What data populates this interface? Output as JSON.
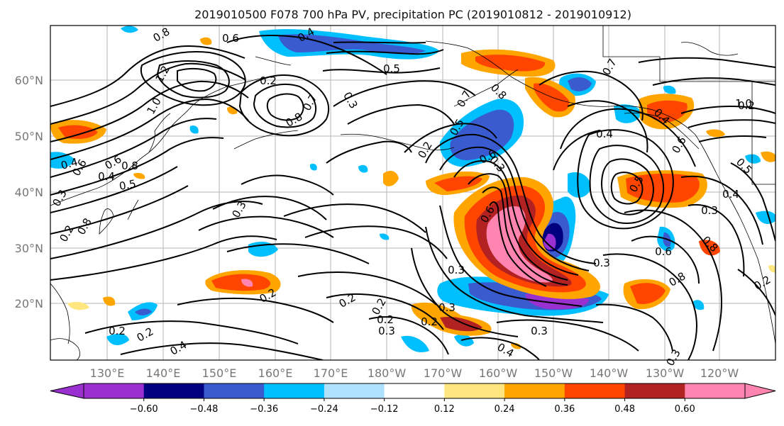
{
  "title": "2019010500 F078 700 hPa PV, precipitation PC (2019010812 - 2019010912)",
  "lat_ticks": [
    "60°N",
    "50°N",
    "40°N",
    "30°N",
    "20°N"
  ],
  "lon_ticks": [
    "130°E",
    "140°E",
    "150°E",
    "160°E",
    "170°E",
    "180°W",
    "170°W",
    "160°W",
    "150°W",
    "140°W",
    "130°W",
    "120°W"
  ],
  "colorbar": {
    "colors": [
      "#9b30d0",
      "#000080",
      "#3a5bd0",
      "#00bfff",
      "#b0e2ff",
      "#ffffff",
      "#ffe680",
      "#ffa500",
      "#ff4500",
      "#b22222",
      "#ff85b0"
    ],
    "labels": [
      "−0.60",
      "−0.48",
      "−0.36",
      "−0.24",
      "−0.12",
      "0.12",
      "0.24",
      "0.36",
      "0.48",
      "0.60"
    ]
  },
  "contour_labels": [
    "0.8",
    "0.6",
    "0.2",
    "0.3",
    "0.8",
    "0.6",
    "0.8",
    "0.4",
    "0.4",
    "1.2",
    "1.0",
    "0.8",
    "0.7",
    "0.3",
    "0.2",
    "0.5",
    "0.6",
    "0.5",
    "0.4",
    "0.7",
    "0.6",
    "0.8",
    "0.7",
    "1.0",
    "0.4",
    "0.4",
    "0.5",
    "0.4",
    "0.8",
    "0.6",
    "0.5",
    "0.8",
    "0.6",
    "0.3",
    "0.3",
    "0.2",
    "0.3",
    "0.2",
    "0.3",
    "0.2",
    "0.2",
    "0.2",
    "0.2",
    "0.4",
    "0.3",
    "0.2",
    "0.6",
    "0.4",
    "0.2",
    "0.3",
    "0.5",
    "0.3",
    "0.2",
    "0.3",
    "0.2",
    "0.3"
  ]
}
